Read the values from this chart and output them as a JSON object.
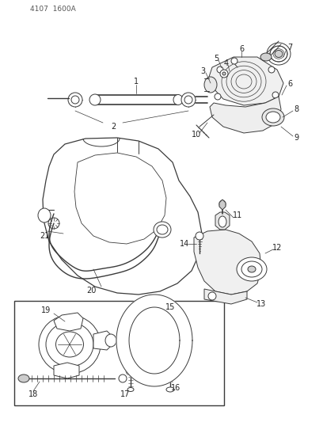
{
  "figsize": [
    4.08,
    5.33
  ],
  "dpi": 100,
  "bg": "#ffffff",
  "lc": "#3a3a3a",
  "part_number": "4107  1600A",
  "label_fontsize": 6.5,
  "label_bold_fontsize": 7.0
}
